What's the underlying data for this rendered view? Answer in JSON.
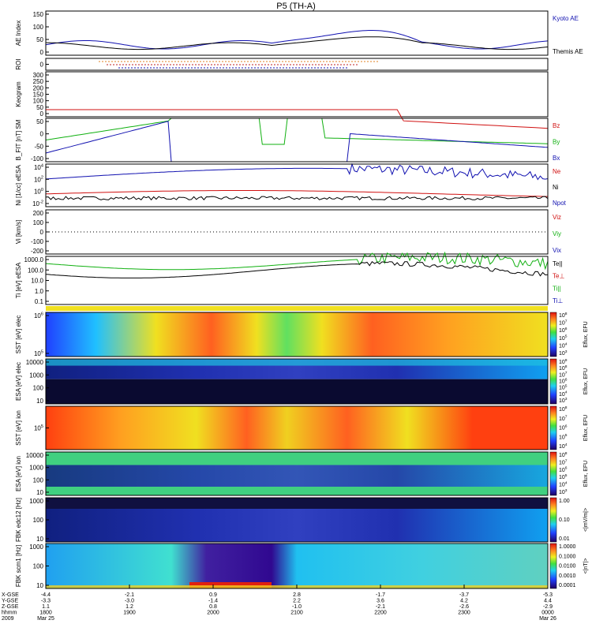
{
  "title": "P5 (TH-A)",
  "chart_data": {
    "type": "line",
    "title": "P5 (TH-A)",
    "time_ticks": [
      "1800",
      "1900",
      "2000",
      "2100",
      "2200",
      "2300",
      "0000"
    ],
    "orbit_labels": {
      "x_gse": "X-GSE",
      "y_gse": "Y-GSE",
      "z_gse": "Z-GSE",
      "hhmm": "hhmm",
      "year": "2009",
      "rows": [
        [
          "-4.4",
          "-3.3",
          "1.1",
          "1800"
        ],
        [
          "-2.1",
          "-3.0",
          "1.2",
          "1900"
        ],
        [
          "0.9",
          "-1.4",
          "0.8",
          "2000"
        ],
        [
          "2.8",
          "2.2",
          "-1.0",
          "2100"
        ],
        [
          "-1.7",
          "3.6",
          "-2.1",
          "2200"
        ],
        [
          "-3.7",
          "4.2",
          "-2.6",
          "2300"
        ],
        [
          "-5.3",
          "4.4",
          "-2.9",
          "0000"
        ]
      ],
      "date_start": "Mar 25",
      "date_end": "Mar 26"
    },
    "panels": [
      {
        "id": "ae",
        "ylabel": "AE Index",
        "yticks": [
          "150",
          "100",
          "50",
          "0"
        ],
        "legend": [
          "Kyoto AE",
          "Themis AE"
        ],
        "legend_colors": [
          "#1010b0",
          "#000000"
        ]
      },
      {
        "id": "roi",
        "ylabel": "ROI",
        "yticks": [
          "0"
        ]
      },
      {
        "id": "keogram",
        "ylabel": "Keogram",
        "yticks": [
          "300",
          "250",
          "200",
          "150",
          "100",
          "50",
          "0"
        ]
      },
      {
        "id": "bfit",
        "ylabel": "B_FIT [nT] SM",
        "yticks": [
          "50",
          "0",
          "-50",
          "-100"
        ],
        "legend": [
          "Bz",
          "By",
          "Bx"
        ],
        "legend_colors": [
          "#d01010",
          "#10b010",
          "#1010b0"
        ]
      },
      {
        "id": "ni",
        "ylabel": "Ni [1/cc] eESA",
        "yticks": [
          "10^4",
          "10^2",
          "10^0",
          "10^-2"
        ],
        "legend": [
          "Ne",
          "Ni",
          "Npot"
        ],
        "legend_colors": [
          "#d01010",
          "#000000",
          "#1010b0"
        ]
      },
      {
        "id": "vi",
        "ylabel": "Vi [km/s]",
        "yticks": [
          "200",
          "100",
          "0",
          "-100",
          "-200"
        ],
        "legend": [
          "Viz",
          "Viy",
          "Vix"
        ],
        "legend_colors": [
          "#d01010",
          "#10b010",
          "#1010b0"
        ]
      },
      {
        "id": "ti",
        "ylabel": "Ti [eV] eESA",
        "yticks": [
          "1000.0",
          "100.0",
          "10.0",
          "1.0",
          "0.1"
        ],
        "legend": [
          "Te||",
          "Te⊥",
          "Ti||",
          "Ti⊥"
        ],
        "legend_colors": [
          "#000000",
          "#d01010",
          "#10b010",
          "#1010b0"
        ]
      },
      {
        "id": "sst_e",
        "ylabel": "SST [eV] elec",
        "yticks": [
          "10^6",
          "10^5"
        ],
        "cbar": "Eflux, EFU",
        "cbar_ticks": [
          "10^8",
          "10^7",
          "10^6",
          "10^5",
          "10^4",
          "10^3"
        ]
      },
      {
        "id": "esa_e",
        "ylabel": "ESA [eV] elec",
        "yticks": [
          "10000",
          "1000",
          "100",
          "10"
        ],
        "cbar": "Eflux, EFU",
        "cbar_ticks": [
          "10^9",
          "10^8",
          "10^7",
          "10^6",
          "10^5",
          "10^4",
          "10^3"
        ]
      },
      {
        "id": "sst_i",
        "ylabel": "SST [eV] ion",
        "yticks": [
          "10^5"
        ],
        "cbar": "Eflux, EFU",
        "cbar_ticks": [
          "10^8",
          "10^7",
          "10^6",
          "10^5",
          "10^4"
        ]
      },
      {
        "id": "esa_i",
        "ylabel": "ESA [eV] ion",
        "yticks": [
          "10000",
          "1000",
          "100",
          "10"
        ],
        "cbar": "Eflux, EFU",
        "cbar_ticks": [
          "10^8",
          "10^7",
          "10^6",
          "10^5",
          "10^4",
          "10^3"
        ]
      },
      {
        "id": "fbk_e",
        "ylabel": "FBK edc12 [Hz]",
        "yticks": [
          "1000",
          "100",
          "10"
        ],
        "cbar": "<|mV/m|>",
        "cbar_ticks": [
          "1.00",
          "0.10",
          "0.01"
        ]
      },
      {
        "id": "fbk_b",
        "ylabel": "FBK scm1 [Hz]",
        "yticks": [
          "1000",
          "100",
          "10"
        ],
        "cbar": "<|nT|>",
        "cbar_ticks": [
          "1.0000",
          "0.1000",
          "0.0100",
          "0.0010",
          "0.0001"
        ]
      }
    ]
  }
}
